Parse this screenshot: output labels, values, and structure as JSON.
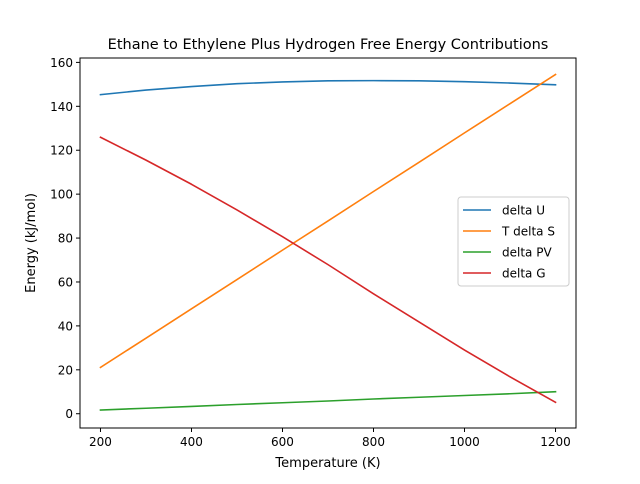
{
  "chart_data": {
    "type": "line",
    "title": "Ethane to Ethylene Plus Hydrogen Free Energy Contributions",
    "xlabel": "Temperature (K)",
    "ylabel": "Energy (kJ/mol)",
    "xlim": [
      155,
      1245
    ],
    "ylim": [
      -6.5,
      162
    ],
    "xticks": [
      200,
      400,
      600,
      800,
      1000,
      1200
    ],
    "yticks": [
      0,
      20,
      40,
      60,
      80,
      100,
      120,
      140,
      160
    ],
    "grid": false,
    "legend_position": "center-right",
    "x": [
      200,
      300,
      400,
      500,
      600,
      700,
      800,
      900,
      1000,
      1100,
      1200
    ],
    "series": [
      {
        "name": "delta U",
        "color": "#1f77b4",
        "values": [
          145.3,
          147.4,
          149.0,
          150.3,
          151.1,
          151.6,
          151.7,
          151.6,
          151.2,
          150.6,
          149.8
        ]
      },
      {
        "name": "T delta S",
        "color": "#ff7f0e",
        "values": [
          21.1,
          34.4,
          47.8,
          61.1,
          74.5,
          87.8,
          101.2,
          114.5,
          127.9,
          141.2,
          154.5
        ]
      },
      {
        "name": "delta PV",
        "color": "#2ca02c",
        "values": [
          1.7,
          2.5,
          3.3,
          4.2,
          5.0,
          5.8,
          6.7,
          7.5,
          8.3,
          9.1,
          10.0
        ]
      },
      {
        "name": "delta G",
        "color": "#d62728",
        "values": [
          125.9,
          115.5,
          104.5,
          92.8,
          80.6,
          67.9,
          54.6,
          41.8,
          29.0,
          16.8,
          5.2
        ]
      }
    ]
  }
}
